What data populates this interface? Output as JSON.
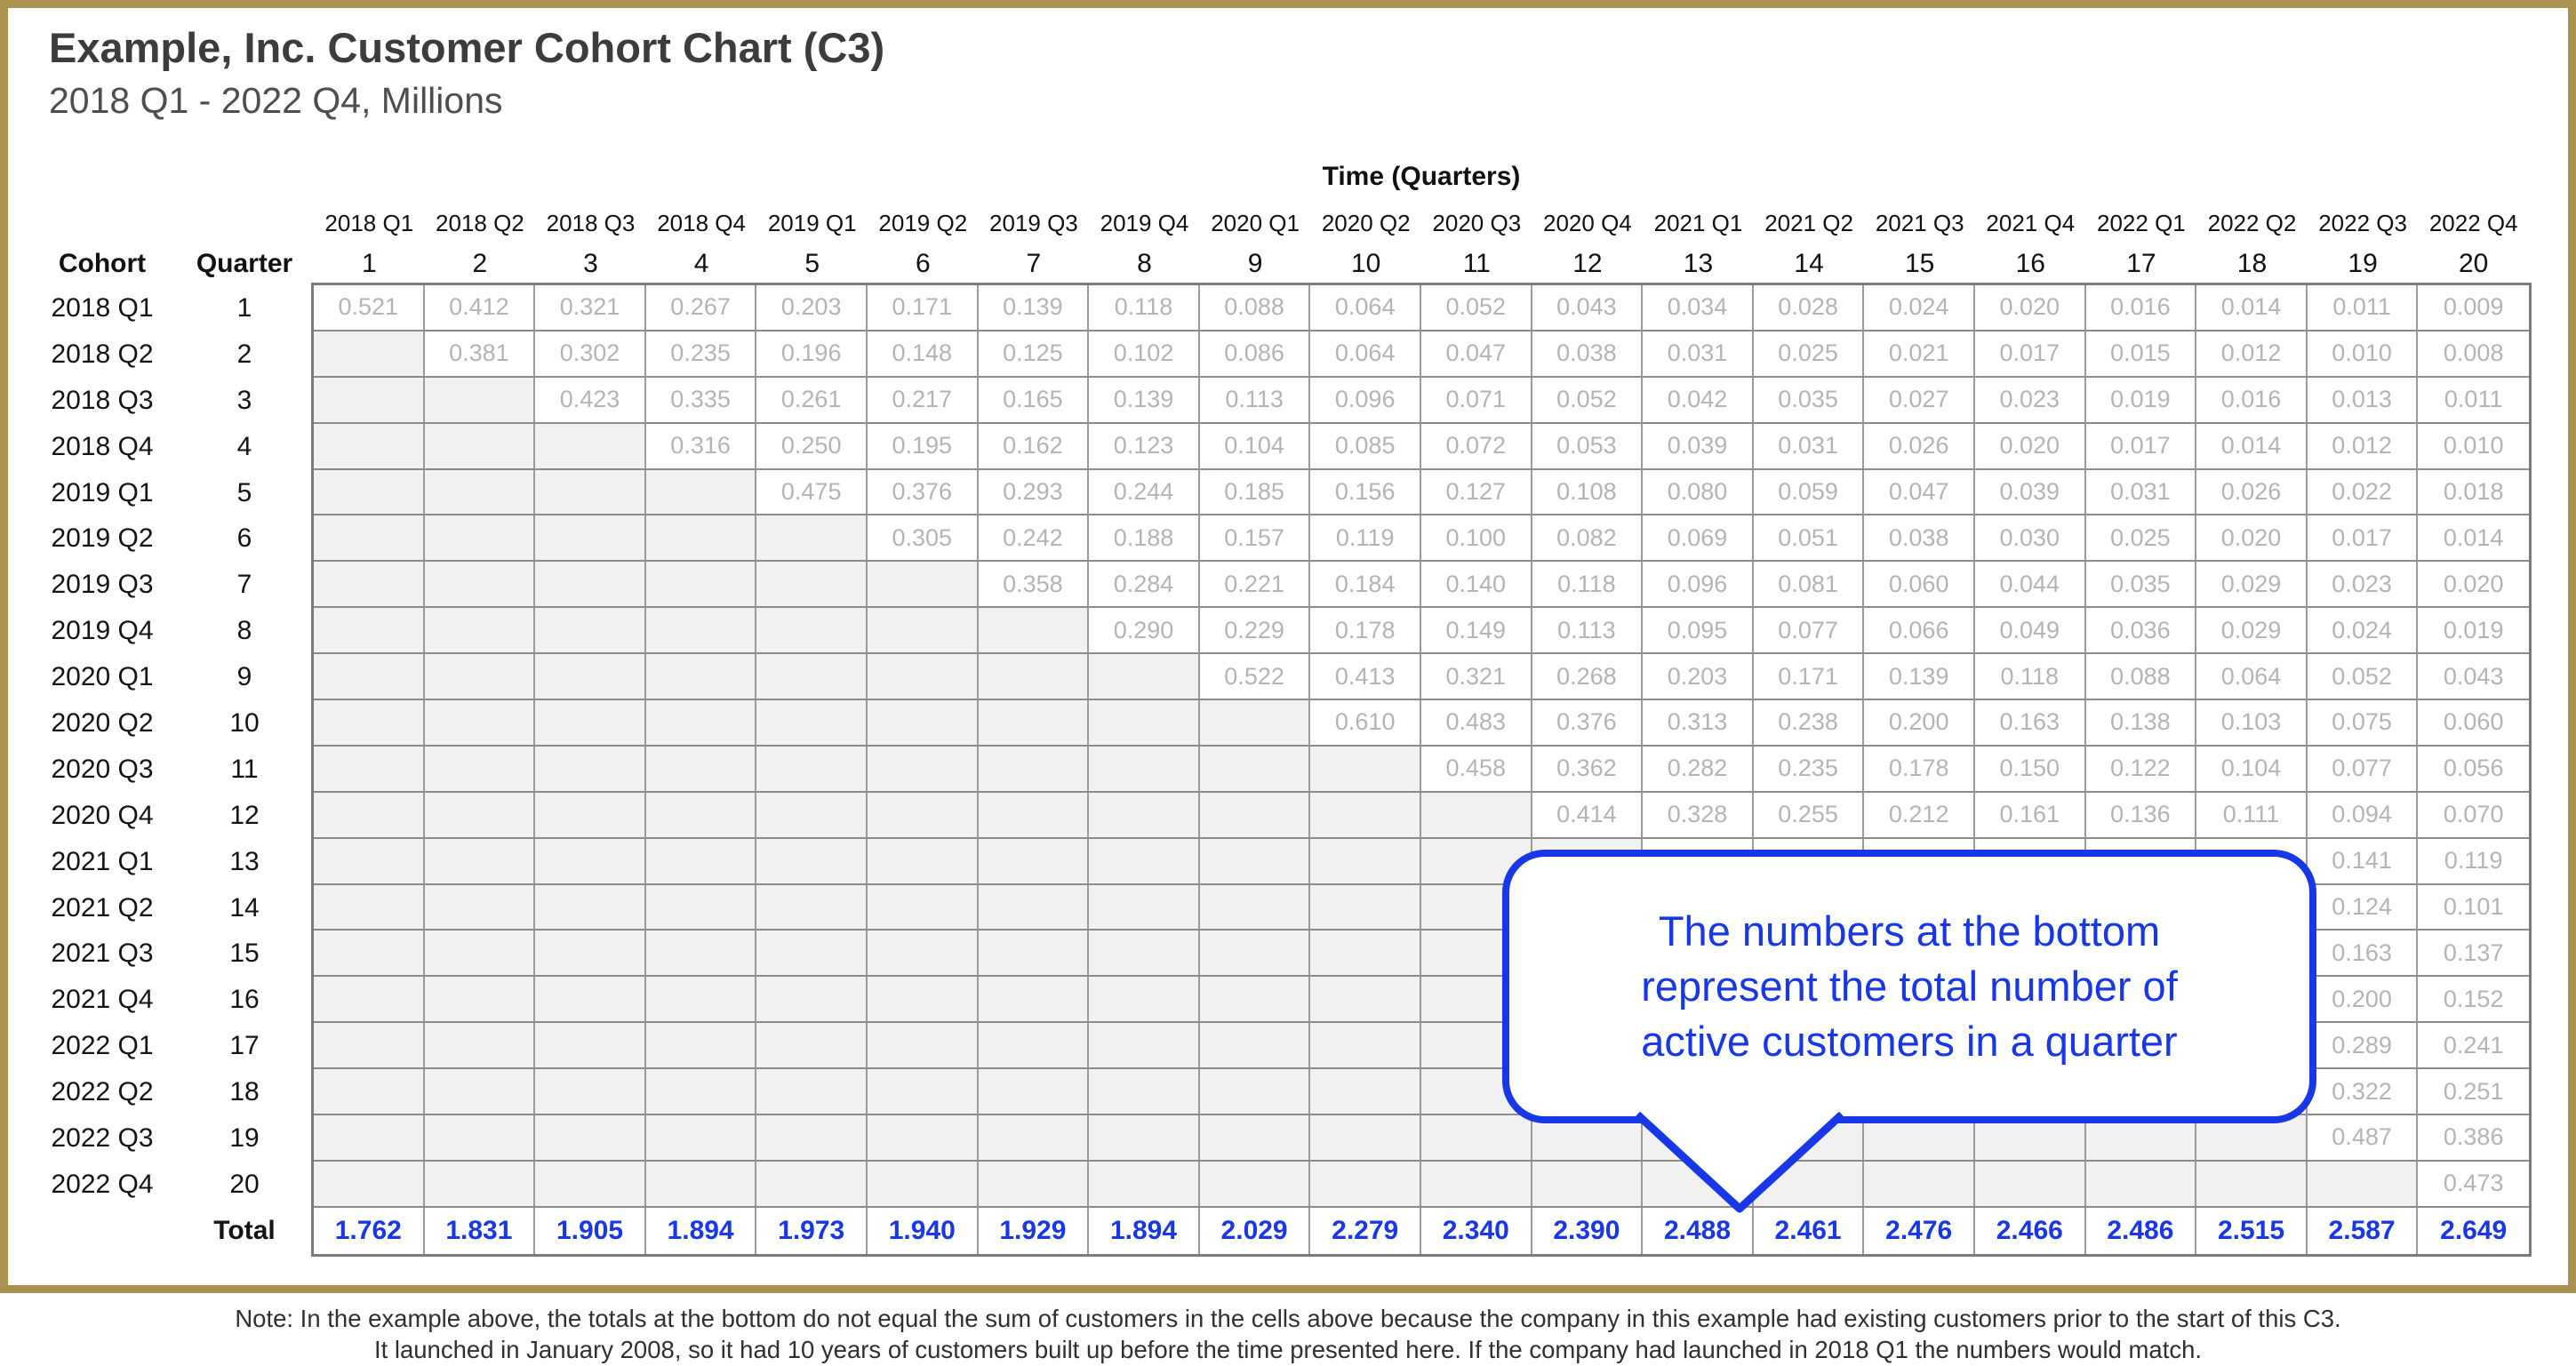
{
  "header": {
    "title": "Example, Inc. Customer Cohort Chart (C3)",
    "subtitle": "2018 Q1 - 2022 Q4, Millions"
  },
  "table_headers": {
    "axis_title": "Time (Quarters)",
    "cohort": "Cohort",
    "quarter": "Quarter",
    "total": "Total"
  },
  "callout": {
    "lines": [
      "The numbers at the bottom",
      "represent the total number of",
      "active customers in a quarter"
    ]
  },
  "note": {
    "line1": "Note: In the example above, the totals at the bottom do not equal the sum of customers in the cells above because the company in this example had existing customers prior to the start of this C3.",
    "line2": "It launched in January 2008, so it had 10 years of customers built up before the time presented here. If the company had launched in 2018 Q1 the numbers would match."
  },
  "colors": {
    "accent_blue": "#1737e8",
    "frame_gold": "#ab9150",
    "shaded_cell": "#f1f1f1",
    "value_gray": "#b4b4b4",
    "grid_border": "#8b8b8b"
  },
  "chart_data": {
    "type": "table",
    "title": "Example, Inc. Customer Cohort Chart (C3)",
    "subtitle": "2018 Q1 - 2022 Q4, Millions",
    "units": "Millions",
    "x_axis_label": "Time (Quarters)",
    "time_quarters": [
      "2018 Q1",
      "2018 Q2",
      "2018 Q3",
      "2018 Q4",
      "2019 Q1",
      "2019 Q2",
      "2019 Q3",
      "2019 Q4",
      "2020 Q1",
      "2020 Q2",
      "2020 Q3",
      "2020 Q4",
      "2021 Q1",
      "2021 Q2",
      "2021 Q3",
      "2021 Q4",
      "2022 Q1",
      "2022 Q2",
      "2022 Q3",
      "2022 Q4"
    ],
    "time_numbers": [
      1,
      2,
      3,
      4,
      5,
      6,
      7,
      8,
      9,
      10,
      11,
      12,
      13,
      14,
      15,
      16,
      17,
      18,
      19,
      20
    ],
    "cohorts": [
      {
        "label": "2018 Q1",
        "quarter": 1,
        "values": [
          0.521,
          0.412,
          0.321,
          0.267,
          0.203,
          0.171,
          0.139,
          0.118,
          0.088,
          0.064,
          0.052,
          0.043,
          0.034,
          0.028,
          0.024,
          0.02,
          0.016,
          0.014,
          0.011,
          0.009
        ]
      },
      {
        "label": "2018 Q2",
        "quarter": 2,
        "values": [
          null,
          0.381,
          0.302,
          0.235,
          0.196,
          0.148,
          0.125,
          0.102,
          0.086,
          0.064,
          0.047,
          0.038,
          0.031,
          0.025,
          0.021,
          0.017,
          0.015,
          0.012,
          0.01,
          0.008
        ]
      },
      {
        "label": "2018 Q3",
        "quarter": 3,
        "values": [
          null,
          null,
          0.423,
          0.335,
          0.261,
          0.217,
          0.165,
          0.139,
          0.113,
          0.096,
          0.071,
          0.052,
          0.042,
          0.035,
          0.027,
          0.023,
          0.019,
          0.016,
          0.013,
          0.011
        ]
      },
      {
        "label": "2018 Q4",
        "quarter": 4,
        "values": [
          null,
          null,
          null,
          0.316,
          0.25,
          0.195,
          0.162,
          0.123,
          0.104,
          0.085,
          0.072,
          0.053,
          0.039,
          0.031,
          0.026,
          0.02,
          0.017,
          0.014,
          0.012,
          0.01
        ]
      },
      {
        "label": "2019 Q1",
        "quarter": 5,
        "values": [
          null,
          null,
          null,
          null,
          0.475,
          0.376,
          0.293,
          0.244,
          0.185,
          0.156,
          0.127,
          0.108,
          0.08,
          0.059,
          0.047,
          0.039,
          0.031,
          0.026,
          0.022,
          0.018
        ]
      },
      {
        "label": "2019 Q2",
        "quarter": 6,
        "values": [
          null,
          null,
          null,
          null,
          null,
          0.305,
          0.242,
          0.188,
          0.157,
          0.119,
          0.1,
          0.082,
          0.069,
          0.051,
          0.038,
          0.03,
          0.025,
          0.02,
          0.017,
          0.014
        ]
      },
      {
        "label": "2019 Q3",
        "quarter": 7,
        "values": [
          null,
          null,
          null,
          null,
          null,
          null,
          0.358,
          0.284,
          0.221,
          0.184,
          0.14,
          0.118,
          0.096,
          0.081,
          0.06,
          0.044,
          0.035,
          0.029,
          0.023,
          0.02
        ]
      },
      {
        "label": "2019 Q4",
        "quarter": 8,
        "values": [
          null,
          null,
          null,
          null,
          null,
          null,
          null,
          0.29,
          0.229,
          0.178,
          0.149,
          0.113,
          0.095,
          0.077,
          0.066,
          0.049,
          0.036,
          0.029,
          0.024,
          0.019
        ]
      },
      {
        "label": "2020 Q1",
        "quarter": 9,
        "values": [
          null,
          null,
          null,
          null,
          null,
          null,
          null,
          null,
          0.522,
          0.413,
          0.321,
          0.268,
          0.203,
          0.171,
          0.139,
          0.118,
          0.088,
          0.064,
          0.052,
          0.043
        ]
      },
      {
        "label": "2020 Q2",
        "quarter": 10,
        "values": [
          null,
          null,
          null,
          null,
          null,
          null,
          null,
          null,
          null,
          0.61,
          0.483,
          0.376,
          0.313,
          0.238,
          0.2,
          0.163,
          0.138,
          0.103,
          0.075,
          0.06
        ]
      },
      {
        "label": "2020 Q3",
        "quarter": 11,
        "values": [
          null,
          null,
          null,
          null,
          null,
          null,
          null,
          null,
          null,
          null,
          0.458,
          0.362,
          0.282,
          0.235,
          0.178,
          0.15,
          0.122,
          0.104,
          0.077,
          0.056
        ]
      },
      {
        "label": "2020 Q4",
        "quarter": 12,
        "values": [
          null,
          null,
          null,
          null,
          null,
          null,
          null,
          null,
          null,
          null,
          null,
          0.414,
          0.328,
          0.255,
          0.212,
          0.161,
          0.136,
          0.111,
          0.094,
          0.07
        ]
      },
      {
        "label": "2021 Q1",
        "quarter": 13,
        "values": [
          null,
          null,
          null,
          null,
          null,
          null,
          null,
          null,
          null,
          null,
          null,
          null,
          null,
          null,
          null,
          null,
          null,
          null,
          0.141,
          0.119
        ]
      },
      {
        "label": "2021 Q2",
        "quarter": 14,
        "values": [
          null,
          null,
          null,
          null,
          null,
          null,
          null,
          null,
          null,
          null,
          null,
          null,
          null,
          null,
          null,
          null,
          null,
          null,
          0.124,
          0.101
        ]
      },
      {
        "label": "2021 Q3",
        "quarter": 15,
        "values": [
          null,
          null,
          null,
          null,
          null,
          null,
          null,
          null,
          null,
          null,
          null,
          null,
          null,
          null,
          null,
          null,
          null,
          null,
          0.163,
          0.137
        ]
      },
      {
        "label": "2021 Q4",
        "quarter": 16,
        "values": [
          null,
          null,
          null,
          null,
          null,
          null,
          null,
          null,
          null,
          null,
          null,
          null,
          null,
          null,
          null,
          null,
          null,
          null,
          0.2,
          0.152
        ]
      },
      {
        "label": "2022 Q1",
        "quarter": 17,
        "values": [
          null,
          null,
          null,
          null,
          null,
          null,
          null,
          null,
          null,
          null,
          null,
          null,
          null,
          null,
          null,
          null,
          null,
          null,
          0.289,
          0.241
        ]
      },
      {
        "label": "2022 Q2",
        "quarter": 18,
        "values": [
          null,
          null,
          null,
          null,
          null,
          null,
          null,
          null,
          null,
          null,
          null,
          null,
          null,
          null,
          null,
          null,
          null,
          null,
          0.322,
          0.251
        ]
      },
      {
        "label": "2022 Q3",
        "quarter": 19,
        "values": [
          null,
          null,
          null,
          null,
          null,
          null,
          null,
          null,
          null,
          null,
          null,
          null,
          null,
          null,
          null,
          null,
          null,
          null,
          0.487,
          0.386
        ]
      },
      {
        "label": "2022 Q4",
        "quarter": 20,
        "values": [
          null,
          null,
          null,
          null,
          null,
          null,
          null,
          null,
          null,
          null,
          null,
          null,
          null,
          null,
          null,
          null,
          null,
          null,
          null,
          0.473
        ]
      }
    ],
    "totals": [
      1.762,
      1.831,
      1.905,
      1.894,
      1.973,
      1.94,
      1.929,
      1.894,
      2.029,
      2.279,
      2.34,
      2.39,
      2.488,
      2.461,
      2.476,
      2.466,
      2.486,
      2.515,
      2.587,
      2.649
    ]
  }
}
